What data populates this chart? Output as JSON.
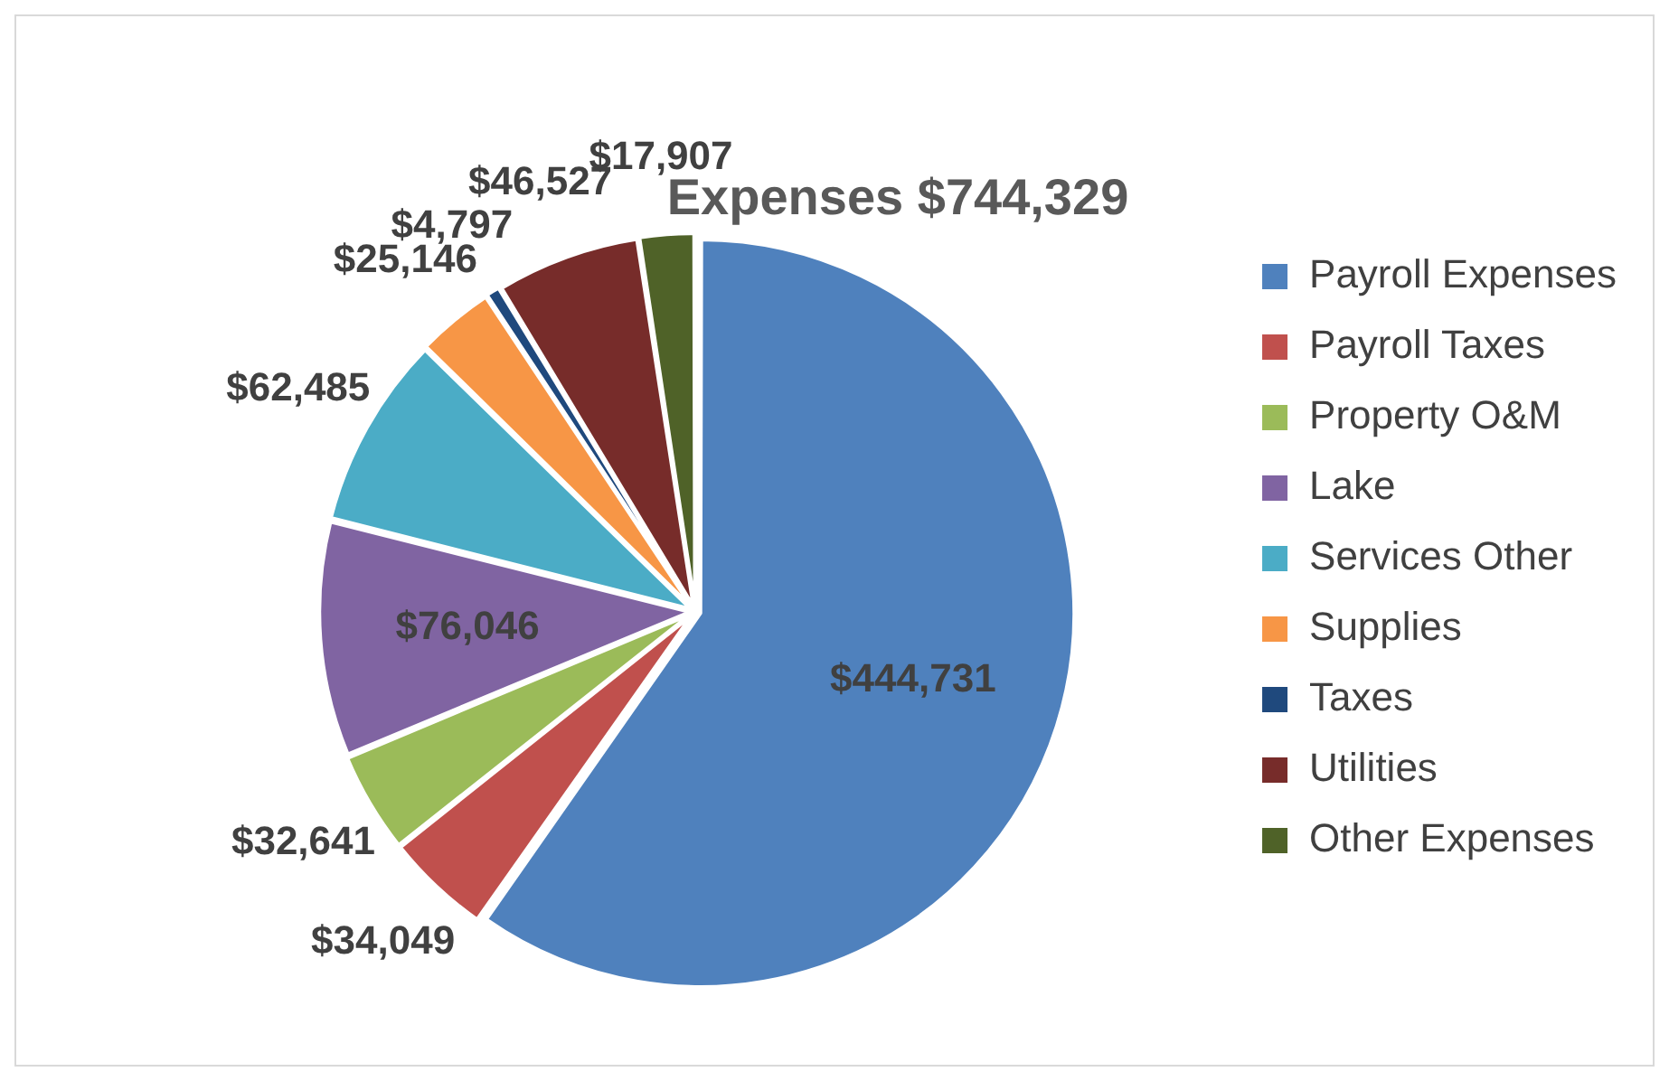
{
  "chart_data": {
    "type": "pie",
    "title": "Expenses $744,329",
    "categories": [
      "Payroll Expenses",
      "Payroll Taxes",
      "Property O&M",
      "Lake",
      "Services Other",
      "Supplies",
      "Taxes",
      "Utilities",
      "Other Expenses"
    ],
    "values": [
      444731,
      34049,
      32641,
      76046,
      62485,
      25146,
      4797,
      46527,
      17907
    ],
    "value_labels": [
      "$444,731",
      "$34,049",
      "$32,641",
      "$76,046",
      "$62,485",
      "$25,146",
      "$4,797",
      "$46,527",
      "$17,907"
    ],
    "colors": [
      "#4f81bd",
      "#c0504d",
      "#9bbb59",
      "#8064a2",
      "#4bacc6",
      "#f79646",
      "#1f497d",
      "#772c2a",
      "#4f6228"
    ],
    "legend": "right"
  }
}
